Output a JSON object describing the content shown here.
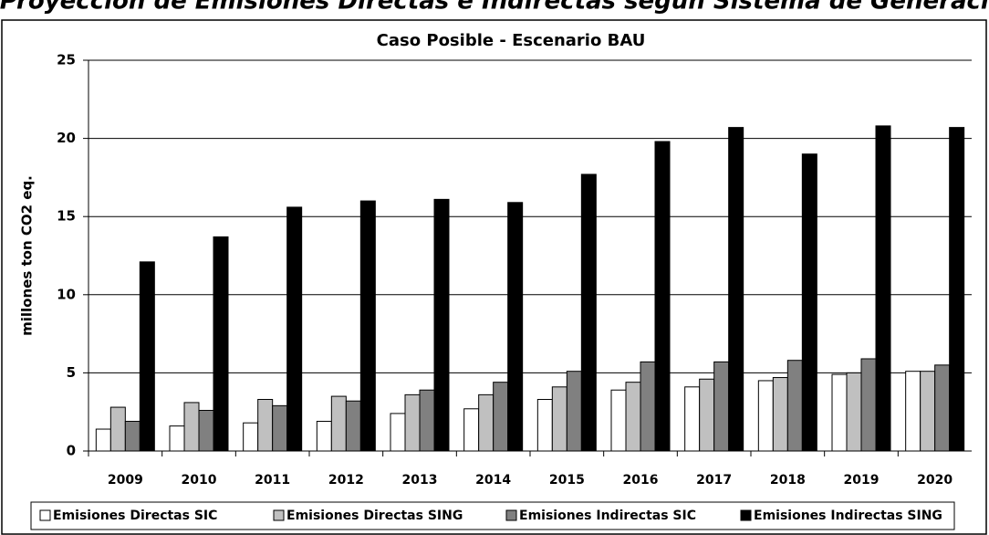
{
  "chart_data": {
    "type": "bar",
    "header": "Proyección de Emisiones Directas e Indirectas según Sistema de Generación",
    "title": "Caso Posible - Escenario BAU",
    "y_label": "millones ton CO2 eq.",
    "categories": [
      "2009",
      "2010",
      "2011",
      "2012",
      "2013",
      "2014",
      "2015",
      "2016",
      "2017",
      "2018",
      "2019",
      "2020"
    ],
    "series": [
      {
        "name": "Emisiones Directas SIC",
        "color": "#ffffff",
        "values": [
          1.4,
          1.6,
          1.8,
          1.9,
          2.4,
          2.7,
          3.3,
          3.9,
          4.1,
          4.5,
          4.9,
          5.1
        ]
      },
      {
        "name": "Emisiones Directas SING",
        "color": "#c0c0c0",
        "values": [
          2.8,
          3.1,
          3.3,
          3.5,
          3.6,
          3.6,
          4.1,
          4.4,
          4.6,
          4.7,
          5.0,
          5.1
        ]
      },
      {
        "name": "Emisiones Indirectas SIC",
        "color": "#808080",
        "values": [
          1.9,
          2.6,
          2.9,
          3.2,
          3.9,
          4.4,
          5.1,
          5.7,
          5.7,
          5.8,
          5.9,
          5.5
        ]
      },
      {
        "name": "Emisiones Indirectas SING",
        "color": "#000000",
        "values": [
          12.1,
          13.7,
          15.6,
          16.0,
          16.1,
          15.9,
          17.7,
          19.8,
          20.7,
          19.0,
          20.8,
          20.7
        ]
      }
    ],
    "ylim": [
      0,
      25
    ],
    "yticks": [
      0,
      5,
      10,
      15,
      20,
      25
    ],
    "grid": true,
    "legend": "bottom"
  }
}
